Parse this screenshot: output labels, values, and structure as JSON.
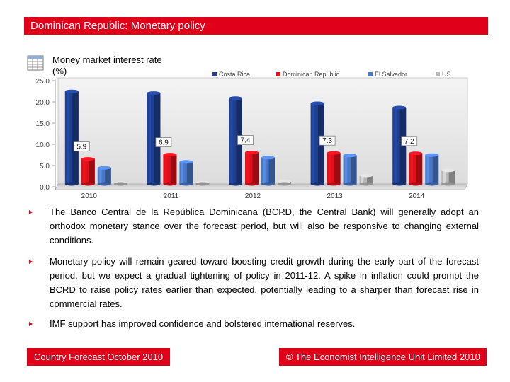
{
  "header": {
    "title": "Dominican Republic: Monetary policy"
  },
  "chart_title": {
    "line1": "Money market interest rate",
    "line2": "(%)"
  },
  "chart_data": {
    "type": "bar",
    "title": "Money market interest rate (%)",
    "categories": [
      "2010",
      "2011",
      "2012",
      "2013",
      "2014"
    ],
    "series": [
      {
        "name": "Costa Rica",
        "color": "#1f3f8f",
        "values": [
          21.8,
          21.4,
          20.2,
          19.0,
          18.0
        ]
      },
      {
        "name": "Dominican Republic",
        "color": "#e0101a",
        "values": [
          5.9,
          6.9,
          7.4,
          7.3,
          7.2
        ]
      },
      {
        "name": "El Salvador",
        "color": "#4a78c8",
        "values": [
          3.8,
          5.2,
          6.2,
          6.7,
          6.8
        ]
      },
      {
        "name": "US",
        "color": "#b8b8b8",
        "values": [
          0.2,
          0.3,
          0.6,
          2.0,
          3.2
        ]
      }
    ],
    "data_labels": [
      "5.9",
      "6.9",
      "7.4",
      "7.3",
      "7.2"
    ],
    "y_ticks": [
      "0.0",
      "5.0",
      "10.0",
      "15.0",
      "20.0",
      "25.0"
    ],
    "ylim": [
      0,
      25
    ],
    "legend_position": "top"
  },
  "bullets": [
    "The Banco Central de la República Dominicana (BCRD, the Central Bank) will generally adopt an orthodox monetary stance over the forecast period, but will also be responsive to changing external conditions.",
    "Monetary policy will remain geared toward boosting credit growth during the early part of the forecast period, but we expect a gradual tightening of policy in 2011-12. A spike in inflation could prompt the BCRD to raise policy rates earlier than expected, potentially leading to a sharper than forecast rise in commercial rates.",
    "IMF support has improved confidence and bolstered international reserves."
  ],
  "footer": {
    "left": "Country Forecast October 2010",
    "right": "© The Economist Intelligence Unit Limited 2010"
  }
}
